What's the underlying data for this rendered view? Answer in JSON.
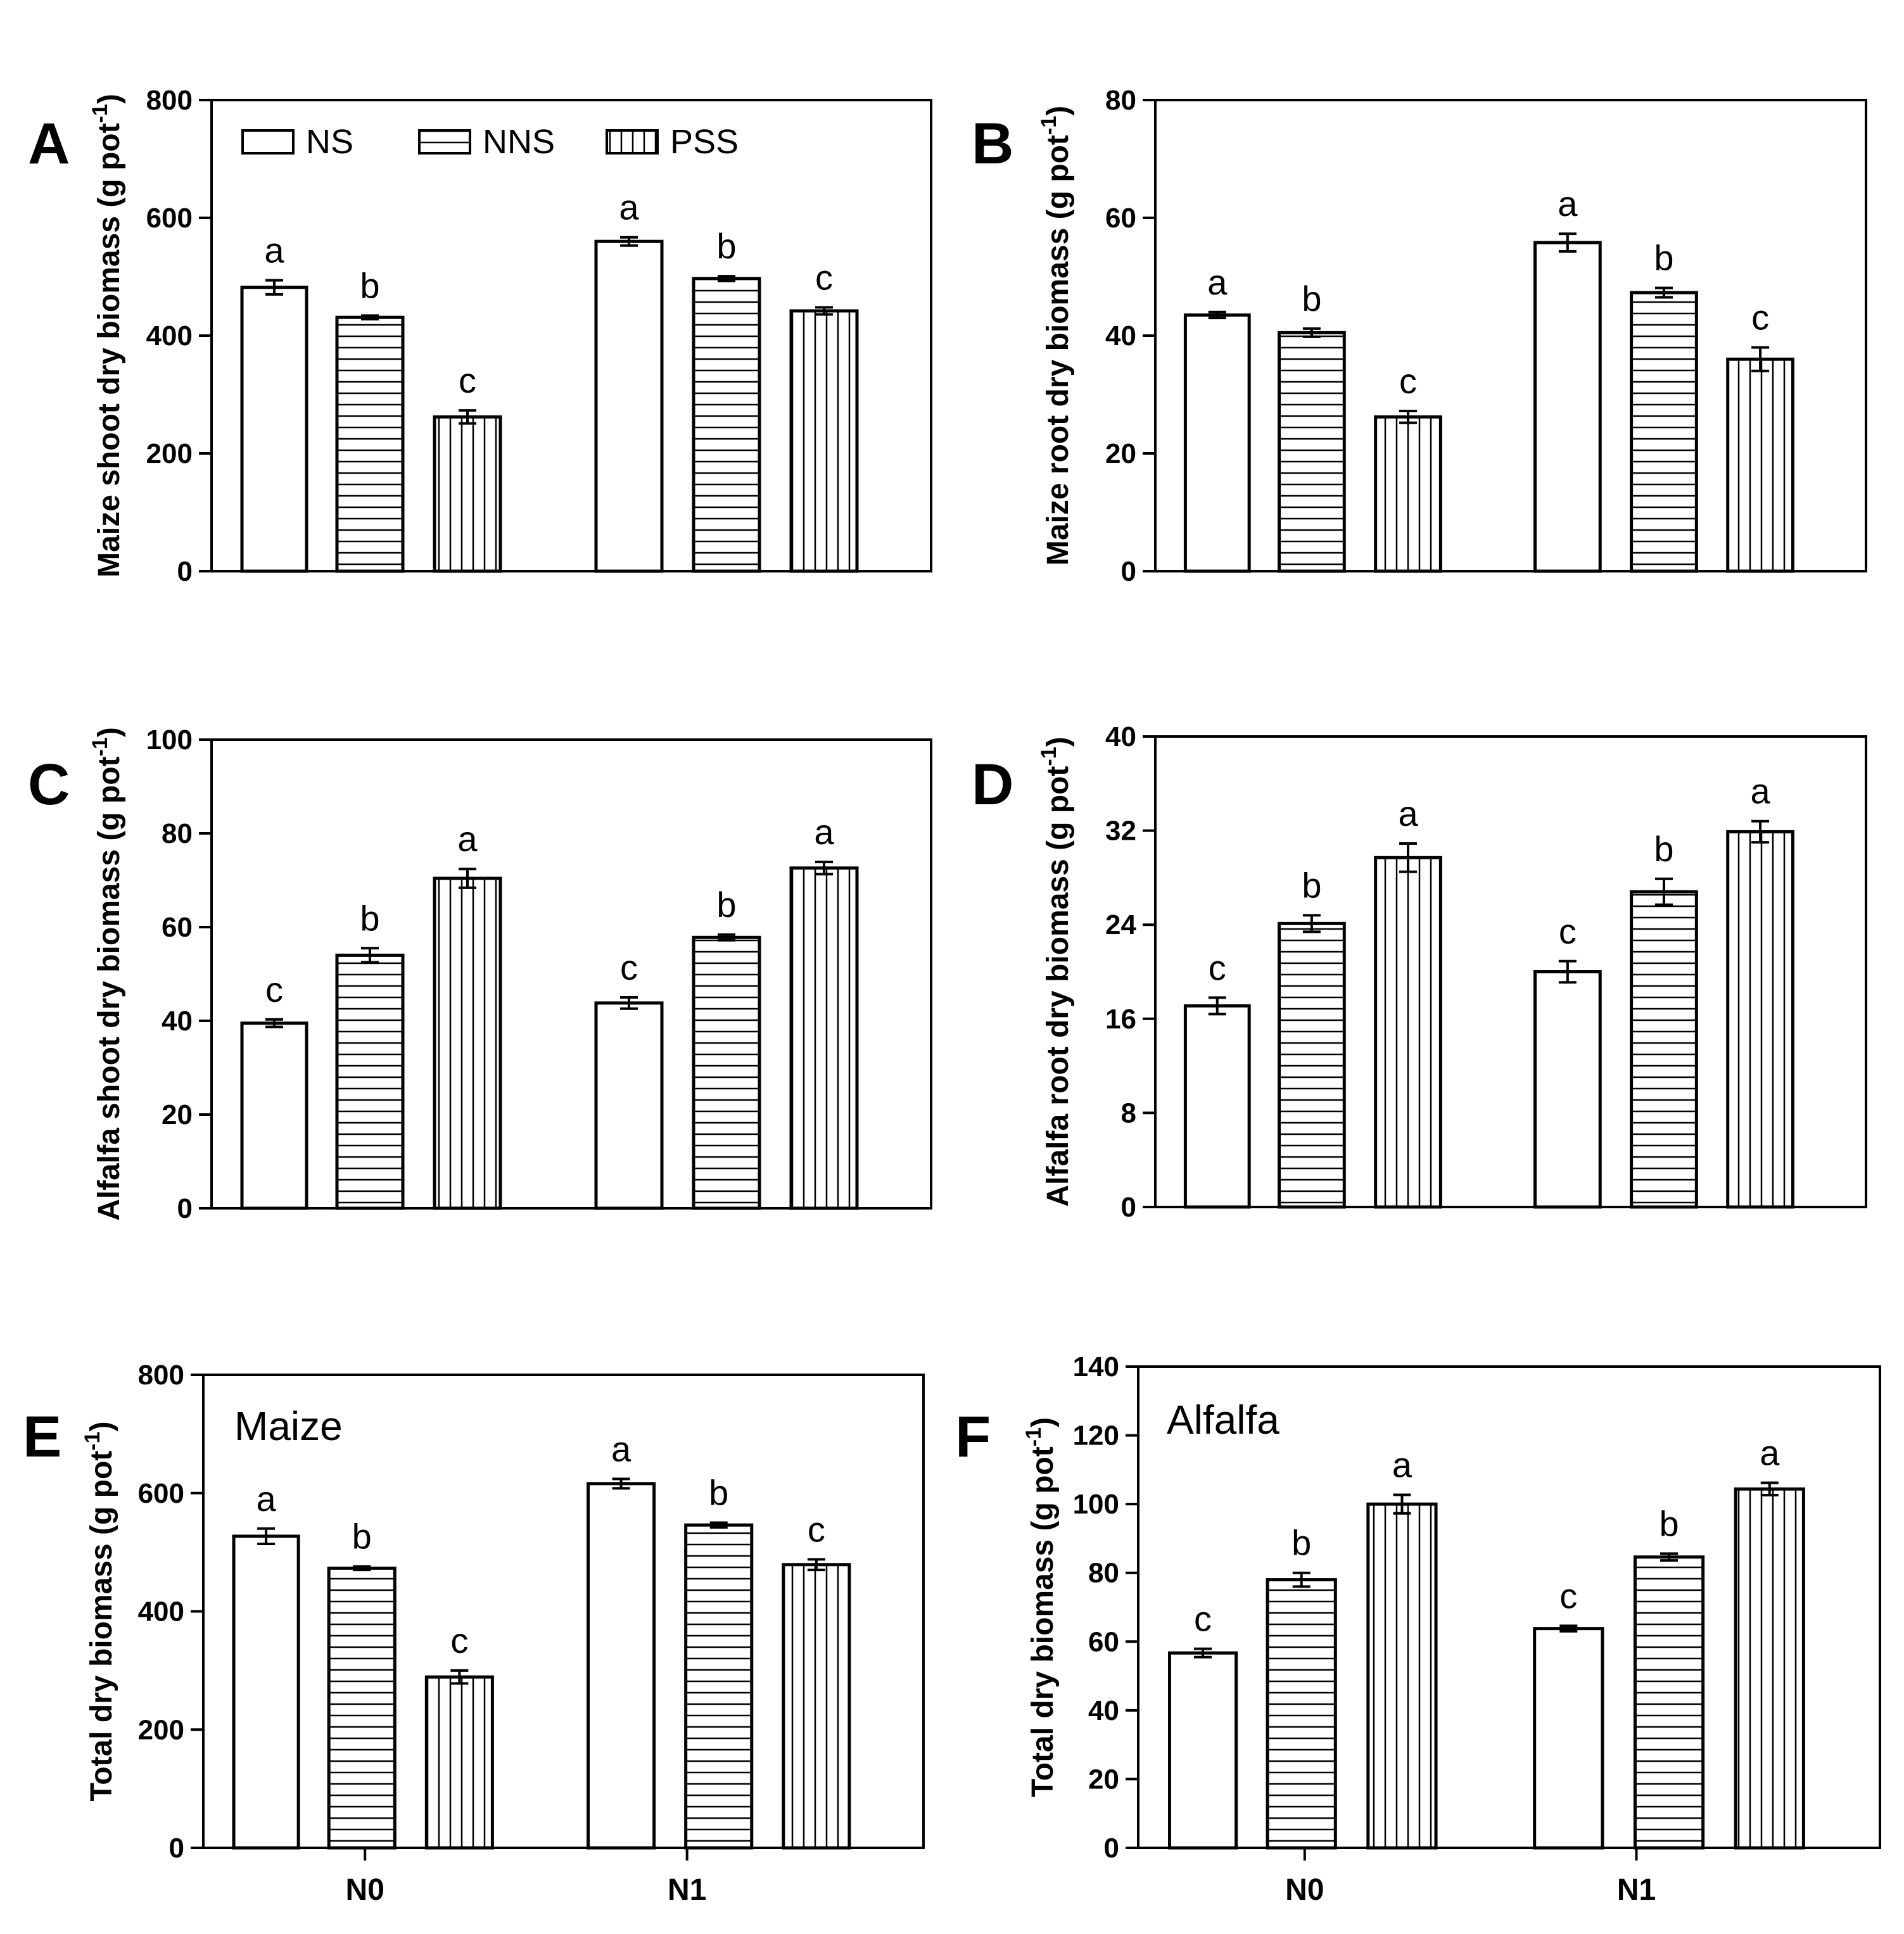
{
  "legend": [
    {
      "name": "NS",
      "pattern": "none"
    },
    {
      "name": "NNS",
      "pattern": "horizontal"
    },
    {
      "name": "PSS",
      "pattern": "vertical"
    }
  ],
  "colors": {
    "stroke": "#000000",
    "fill": "#ffffff"
  },
  "chart_data": [
    {
      "panel": "A",
      "type": "bar",
      "ylabel": "Maize shoot dry biomass (g pot-1)",
      "ylim": [
        0,
        800
      ],
      "yticks": [
        0,
        200,
        400,
        600,
        800
      ],
      "categories": [
        "N0",
        "N1"
      ],
      "show_xlabels": false,
      "legend_placement": "top-left",
      "series": [
        {
          "name": "NS",
          "values": [
            482,
            560
          ],
          "errors": [
            12,
            7
          ],
          "letters": [
            "a",
            "a"
          ]
        },
        {
          "name": "NNS",
          "values": [
            431,
            497
          ],
          "errors": [
            3,
            4
          ],
          "letters": [
            "b",
            "b"
          ]
        },
        {
          "name": "PSS",
          "values": [
            262,
            442
          ],
          "errors": [
            11,
            6
          ],
          "letters": [
            "c",
            "c"
          ]
        }
      ]
    },
    {
      "panel": "B",
      "type": "bar",
      "ylabel": "Maize root dry biomass (g pot-1)",
      "ylim": [
        0,
        80
      ],
      "yticks": [
        0,
        20,
        40,
        60,
        80
      ],
      "categories": [
        "N0",
        "N1"
      ],
      "show_xlabels": false,
      "series": [
        {
          "name": "NS",
          "values": [
            43.5,
            55.8
          ],
          "errors": [
            0.5,
            1.5
          ],
          "letters": [
            "a",
            "a"
          ]
        },
        {
          "name": "NNS",
          "values": [
            40.5,
            47.3
          ],
          "errors": [
            0.7,
            0.8
          ],
          "letters": [
            "b",
            "b"
          ]
        },
        {
          "name": "PSS",
          "values": [
            26.2,
            36.0
          ],
          "errors": [
            1.0,
            2.0
          ],
          "letters": [
            "c",
            "c"
          ]
        }
      ]
    },
    {
      "panel": "C",
      "type": "bar",
      "ylabel": "Alfalfa shoot dry biomass (g pot-1)",
      "ylim": [
        0,
        100
      ],
      "yticks": [
        0,
        20,
        40,
        60,
        80,
        100
      ],
      "categories": [
        "N0",
        "N1"
      ],
      "show_xlabels": false,
      "series": [
        {
          "name": "NS",
          "values": [
            39.5,
            43.8
          ],
          "errors": [
            0.8,
            1.2
          ],
          "letters": [
            "c",
            "c"
          ]
        },
        {
          "name": "NNS",
          "values": [
            54.0,
            57.8
          ],
          "errors": [
            1.5,
            0.6
          ],
          "letters": [
            "b",
            "b"
          ]
        },
        {
          "name": "PSS",
          "values": [
            70.4,
            72.6
          ],
          "errors": [
            2.0,
            1.3
          ],
          "letters": [
            "a",
            "a"
          ]
        }
      ]
    },
    {
      "panel": "D",
      "type": "bar",
      "ylabel": "Alfalfa root dry biomass (g pot-1)",
      "ylim": [
        0,
        40
      ],
      "yticks": [
        0,
        8,
        16,
        24,
        32,
        40
      ],
      "categories": [
        "N0",
        "N1"
      ],
      "show_xlabels": false,
      "series": [
        {
          "name": "NS",
          "values": [
            17.1,
            20.0
          ],
          "errors": [
            0.7,
            0.9
          ],
          "letters": [
            "c",
            "c"
          ]
        },
        {
          "name": "NNS",
          "values": [
            24.1,
            26.8
          ],
          "errors": [
            0.7,
            1.1
          ],
          "letters": [
            "b",
            "b"
          ]
        },
        {
          "name": "PSS",
          "values": [
            29.7,
            31.9
          ],
          "errors": [
            1.2,
            0.9
          ],
          "letters": [
            "a",
            "a"
          ]
        }
      ]
    },
    {
      "panel": "E",
      "type": "bar",
      "inset_title": "Maize",
      "ylabel": "Total dry biomass (g pot-1)",
      "ylim": [
        0,
        800
      ],
      "yticks": [
        0,
        200,
        400,
        600,
        800
      ],
      "categories": [
        "N0",
        "N1"
      ],
      "show_xlabels": true,
      "series": [
        {
          "name": "NS",
          "values": [
            527,
            616
          ],
          "errors": [
            13,
            8
          ],
          "letters": [
            "a",
            "a"
          ]
        },
        {
          "name": "NNS",
          "values": [
            473,
            546
          ],
          "errors": [
            3,
            4
          ],
          "letters": [
            "b",
            "b"
          ]
        },
        {
          "name": "PSS",
          "values": [
            289,
            479
          ],
          "errors": [
            11,
            9
          ],
          "letters": [
            "c",
            "c"
          ]
        }
      ]
    },
    {
      "panel": "F",
      "type": "bar",
      "inset_title": "Alfalfa",
      "ylabel": "Total dry biomass (g pot-1)",
      "ylim": [
        0,
        140
      ],
      "yticks": [
        0,
        20,
        40,
        60,
        80,
        100,
        120,
        140
      ],
      "categories": [
        "N0",
        "N1"
      ],
      "show_xlabels": true,
      "series": [
        {
          "name": "NS",
          "values": [
            56.7,
            63.8
          ],
          "errors": [
            1.2,
            0.8
          ],
          "letters": [
            "c",
            "c"
          ]
        },
        {
          "name": "NNS",
          "values": [
            78.0,
            84.6
          ],
          "errors": [
            2.0,
            1.0
          ],
          "letters": [
            "b",
            "b"
          ]
        },
        {
          "name": "PSS",
          "values": [
            100.0,
            104.4
          ],
          "errors": [
            2.7,
            1.8
          ],
          "letters": [
            "a",
            "a"
          ]
        }
      ]
    }
  ]
}
